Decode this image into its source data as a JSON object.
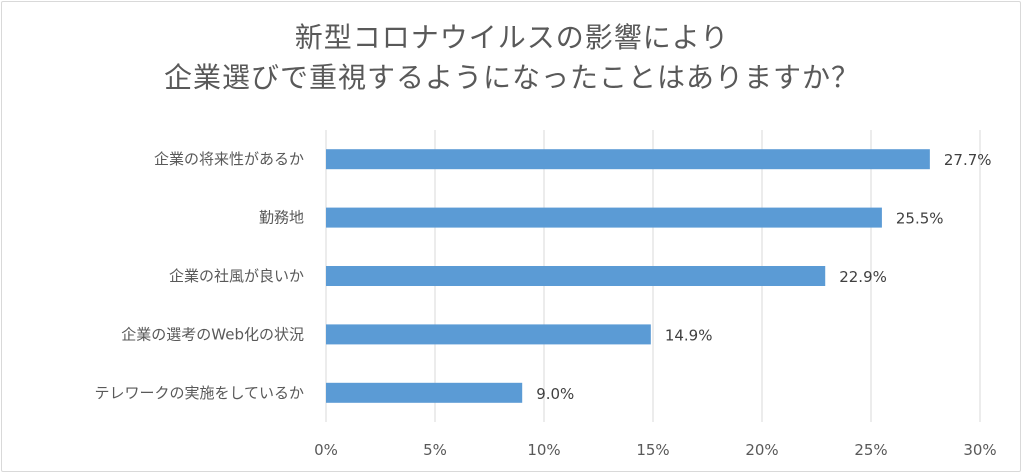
{
  "chart_data": {
    "type": "bar",
    "orientation": "horizontal",
    "title_lines": [
      "新型コロナウイルスの影響により",
      "企業選びで重視するようになったことはありますか？"
    ],
    "categories": [
      "企業の将来性があるか",
      "勤務地",
      "企業の社風が良いか",
      "企業の選考のWeb化の状況",
      "テレワークの実施をしているか"
    ],
    "values": [
      27.7,
      25.5,
      22.9,
      14.9,
      9.0
    ],
    "data_labels": [
      "27.7%",
      "25.5%",
      "22.9%",
      "14.9%",
      "9.0%"
    ],
    "xlim": [
      0,
      30
    ],
    "x_ticks": [
      0,
      5,
      10,
      15,
      20,
      25,
      30
    ],
    "x_tick_labels": [
      "0%",
      "5%",
      "10%",
      "15%",
      "20%",
      "25%",
      "30%"
    ],
    "grid": "vertical",
    "legend": "none",
    "bar_color": "#5b9bd5",
    "grid_color": "#d9d9d9"
  }
}
